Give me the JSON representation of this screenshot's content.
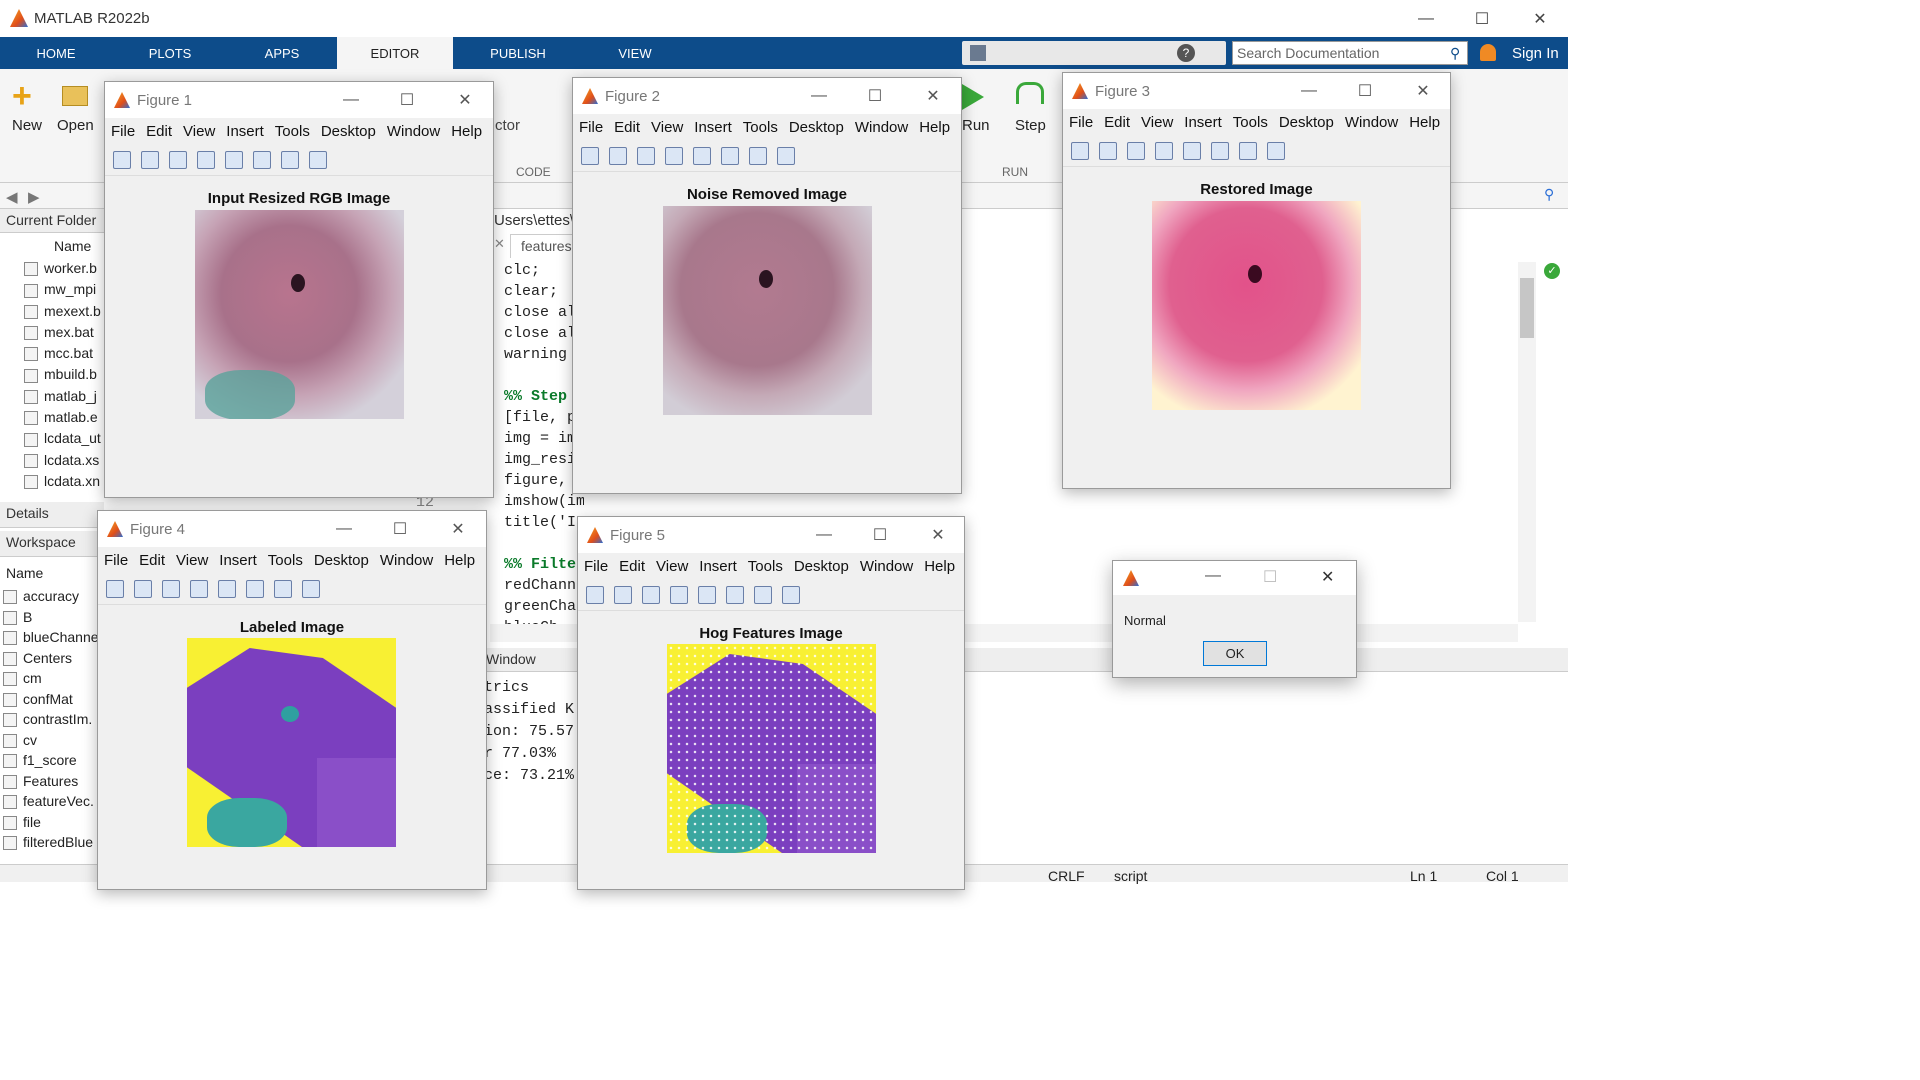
{
  "app": {
    "title": "MATLAB R2022b"
  },
  "ribbon": {
    "tabs": [
      "HOME",
      "PLOTS",
      "APPS",
      "EDITOR",
      "PUBLISH",
      "VIEW"
    ],
    "active_tab": "EDITOR",
    "search_placeholder": "Search Documentation",
    "sign_in": "Sign In",
    "new_label": "New",
    "open_label": "Open",
    "run_label": "Run",
    "step_label": "Step",
    "code_section": "CODE",
    "run_section": "RUN",
    "ctor_frag": "ctor"
  },
  "current_folder": {
    "header": "Current Folder",
    "col_name": "Name",
    "files": [
      "worker.b",
      "mw_mpi",
      "mexext.b",
      "mex.bat",
      "mcc.bat",
      "mbuild.b",
      "matlab_j",
      "matlab.e",
      "lcdata_ut",
      "lcdata.xs",
      "lcdata.xn"
    ],
    "details": "Details"
  },
  "workspace": {
    "header": "Workspace",
    "col_name": "Name",
    "vars": [
      "accuracy",
      "B",
      "blueChanne",
      "Centers",
      "cm",
      "confMat",
      "contrastIm.",
      "cv",
      "f1_score",
      "Features",
      "featureVec.",
      "file",
      "filteredBlue"
    ]
  },
  "editor": {
    "path_frag": "Users\\ettes\\",
    "tab": "features",
    "lines": [
      "clc;",
      "clear;",
      "close al",
      "close al",
      "warning",
      "",
      "%% Step",
      "[file, p",
      "img = im",
      "img_resi",
      "figure,",
      "imshow(img_resized),",
      "title('I",
      "",
      "%% Filte",
      "redChann",
      "greenCha",
      "blueCh"
    ],
    "line_no": "12"
  },
  "command_window": {
    "header": "Window",
    "lines": [
      "trics",
      "assified K",
      "ion: 75.57",
      "r 77.03%",
      "ce: 73.21%"
    ]
  },
  "status": {
    "crlf": "CRLF",
    "type": "script",
    "ln": "Ln 1",
    "col": "Col 1"
  },
  "figure_menu": [
    "File",
    "Edit",
    "View",
    "Insert",
    "Tools",
    "Desktop",
    "Window",
    "Help"
  ],
  "figures": [
    {
      "title": "Figure 1",
      "caption": "Input Resized RGB Image"
    },
    {
      "title": "Figure 2",
      "caption": "Noise Removed Image"
    },
    {
      "title": "Figure 3",
      "caption": "Restored Image"
    },
    {
      "title": "Figure 4",
      "caption": "Labeled Image"
    },
    {
      "title": "Figure 5",
      "caption": "Hog Features Image"
    }
  ],
  "dialog": {
    "message": "Normal",
    "ok": "OK"
  }
}
